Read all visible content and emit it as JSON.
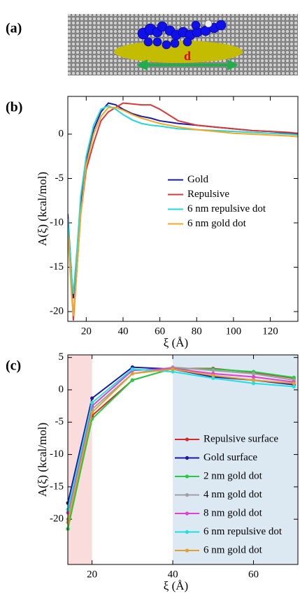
{
  "panel_a": {
    "label": "(a)",
    "annotation": "d"
  },
  "chart_data": [
    {
      "type": "line",
      "panel_label": "(b)",
      "xlabel": "ξ (Å)",
      "ylabel": "A(ξ) (kcal/mol)",
      "x": [
        10,
        12,
        13,
        15,
        17,
        20,
        24,
        28,
        32,
        36,
        40,
        45,
        50,
        55,
        60,
        70,
        80,
        90,
        100,
        110,
        120,
        130,
        135
      ],
      "series": [
        {
          "name": "Gold",
          "color": "#1a1aa6",
          "values": [
            -9,
            -16,
            -18.5,
            -14,
            -8,
            -3,
            0.5,
            2.5,
            3.5,
            3.3,
            2.8,
            2.3,
            2,
            1.8,
            1.5,
            1.2,
            1,
            0.8,
            0.6,
            0.4,
            0.3,
            0.1,
            0
          ]
        },
        {
          "name": "Repulsive",
          "color": "#d83a3a",
          "values": [
            -10,
            -17,
            -21,
            -15,
            -9,
            -4,
            -1,
            1.5,
            2.5,
            3,
            3.5,
            3.4,
            3.3,
            3.3,
            2.8,
            1.5,
            1,
            0.8,
            0.6,
            0.4,
            0.3,
            0.2,
            0.1
          ]
        },
        {
          "name": "6 nm repulsive dot",
          "color": "#22d8d8",
          "values": [
            -9.5,
            -16,
            -18,
            -13,
            -7,
            -2.5,
            1,
            2.8,
            3.2,
            2.8,
            2.2,
            1.6,
            1.2,
            1,
            0.9,
            0.6,
            0.5,
            0.4,
            0.3,
            0.2,
            0.1,
            0,
            -0.1
          ]
        },
        {
          "name": "6 nm gold dot",
          "color": "#f5a623",
          "values": [
            -11,
            -18,
            -20.5,
            -15,
            -9,
            -3.5,
            0,
            2,
            3,
            3,
            2.7,
            2.2,
            1.8,
            1.5,
            1.2,
            0.8,
            0.5,
            0.3,
            0.1,
            0,
            -0.1,
            -0.2,
            -0.3
          ]
        }
      ],
      "xlim": [
        10,
        135
      ],
      "ylim": [
        -21.1,
        4.25
      ],
      "xticks": [
        20,
        40,
        60,
        80,
        100,
        120
      ],
      "yticks": [
        -20,
        -15,
        -10,
        -5,
        0
      ],
      "legend": "center right",
      "markers": false,
      "grid": false
    },
    {
      "type": "line",
      "panel_label": "(c)",
      "xlabel": "ξ (Å)",
      "ylabel": "A(ξ) (kcal/mol)",
      "x": [
        14,
        20,
        30,
        40,
        50,
        60,
        70
      ],
      "series": [
        {
          "name": "Repulsive surface",
          "color": "#d42a2a",
          "values": [
            -21.5,
            -4,
            1.5,
            3.3,
            3.3,
            2.7,
            1.8
          ]
        },
        {
          "name": "Gold surface",
          "color": "#1a1aa6",
          "values": [
            -17.5,
            -1.3,
            3.5,
            3.2,
            2,
            1.5,
            0.8
          ]
        },
        {
          "name": "2 nm gold dot",
          "color": "#22cc44",
          "values": [
            -21.5,
            -4.5,
            1.5,
            3.3,
            3.2,
            2.8,
            1.9
          ]
        },
        {
          "name": "4 nm gold dot",
          "color": "#a0a0a0",
          "values": [
            -20,
            -3,
            2.5,
            3.5,
            3,
            2.5,
            1.5
          ]
        },
        {
          "name": "8 nm gold dot",
          "color": "#e040d0",
          "values": [
            -19,
            -2.5,
            3,
            3.3,
            2.5,
            2,
            1.2
          ]
        },
        {
          "name": "6 nm repulsive dot",
          "color": "#22e0e0",
          "values": [
            -18.5,
            -2,
            3.2,
            2.8,
            1.8,
            1,
            0.5
          ]
        },
        {
          "name": "6 nm gold dot",
          "color": "#e0a030",
          "values": [
            -20.5,
            -3.5,
            2.5,
            3.2,
            2.2,
            1.5,
            1
          ]
        }
      ],
      "xlim": [
        14,
        71
      ],
      "ylim": [
        -27,
        5.4
      ],
      "xticks": [
        20,
        40,
        60
      ],
      "yticks": [
        -20,
        -15,
        -10,
        -5,
        0,
        5
      ],
      "shaded_regions": [
        {
          "xlim": [
            14,
            20
          ],
          "color": "#fadcdc"
        },
        {
          "xlim": [
            40,
            71
          ],
          "color": "#dce9f3"
        }
      ],
      "legend": "lower right",
      "markers": true,
      "grid": false
    }
  ]
}
